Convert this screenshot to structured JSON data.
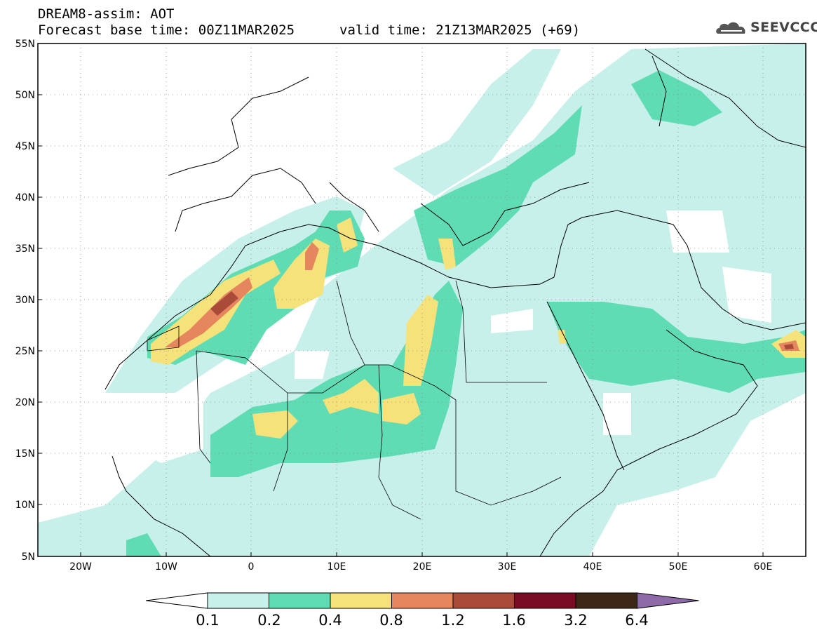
{
  "header": {
    "title": "DREAM8-assim: AOT",
    "base_time_label": "Forecast base time: 00Z11MAR2025",
    "valid_time_label": "valid time: 21Z13MAR2025 (+69)"
  },
  "logo": {
    "text": "SEEVCCC"
  },
  "map": {
    "lat_labels": [
      "55N",
      "50N",
      "45N",
      "40N",
      "35N",
      "30N",
      "25N",
      "20N",
      "15N",
      "10N",
      "5N"
    ],
    "lon_labels": [
      "20W",
      "10W",
      "0",
      "10E",
      "20E",
      "30E",
      "40E",
      "50E",
      "60E"
    ],
    "lat_range": [
      5,
      55
    ],
    "lon_range": [
      -25,
      65
    ],
    "grid": true
  },
  "colorbar": {
    "labels": [
      "0.1",
      "0.2",
      "0.4",
      "0.8",
      "1.2",
      "1.6",
      "3.2",
      "6.4"
    ],
    "colors": [
      "#ffffff",
      "#c8f0ea",
      "#5fdcb4",
      "#f5e27a",
      "#e5865f",
      "#aa4a38",
      "#7a0c26",
      "#3d2818",
      "#8e6aa8"
    ]
  }
}
